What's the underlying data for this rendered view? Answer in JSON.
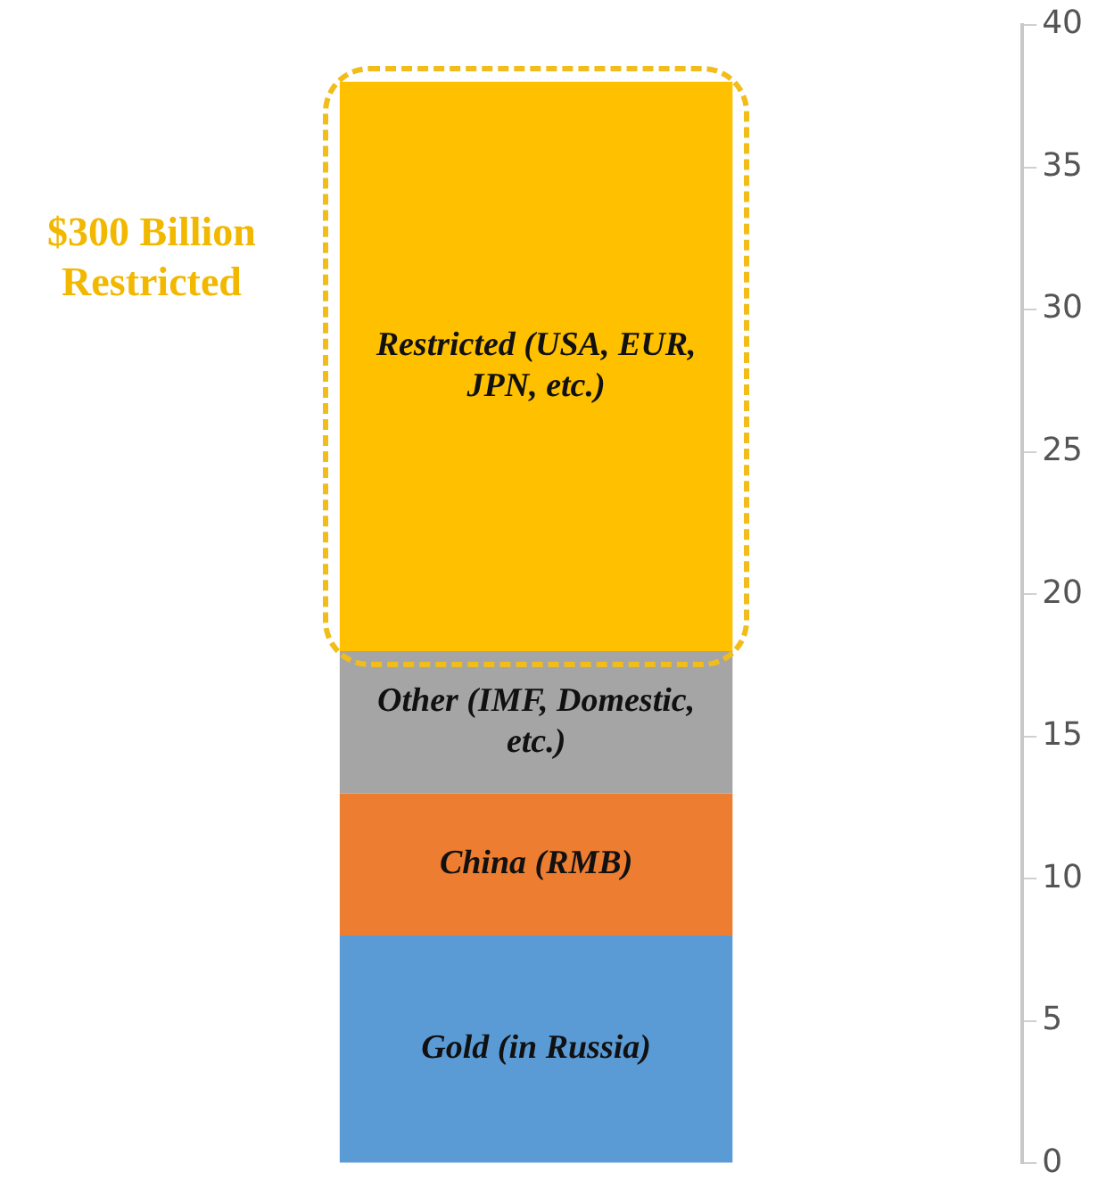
{
  "chart_data": {
    "type": "bar",
    "stacked": true,
    "categories": [
      null
    ],
    "series": [
      {
        "name": "Gold (in Russia)",
        "color": "#5b9bd5",
        "values": [
          8
        ]
      },
      {
        "name": "China (RMB)",
        "color": "#ed7d31",
        "values": [
          5
        ]
      },
      {
        "name": "Other (IMF, Domestic, etc.)",
        "color": "#a5a5a5",
        "values": [
          5
        ]
      },
      {
        "name": "Restricted (USA, EUR, JPN, etc.)",
        "color": "#ffc000",
        "values": [
          20
        ]
      }
    ],
    "ylim": [
      0,
      40
    ],
    "yticks": [
      0,
      5,
      10,
      15,
      20,
      25,
      30,
      35,
      40
    ],
    "grid": false,
    "legend": false,
    "annotations": [
      "$300 Billion Restricted"
    ]
  }
}
